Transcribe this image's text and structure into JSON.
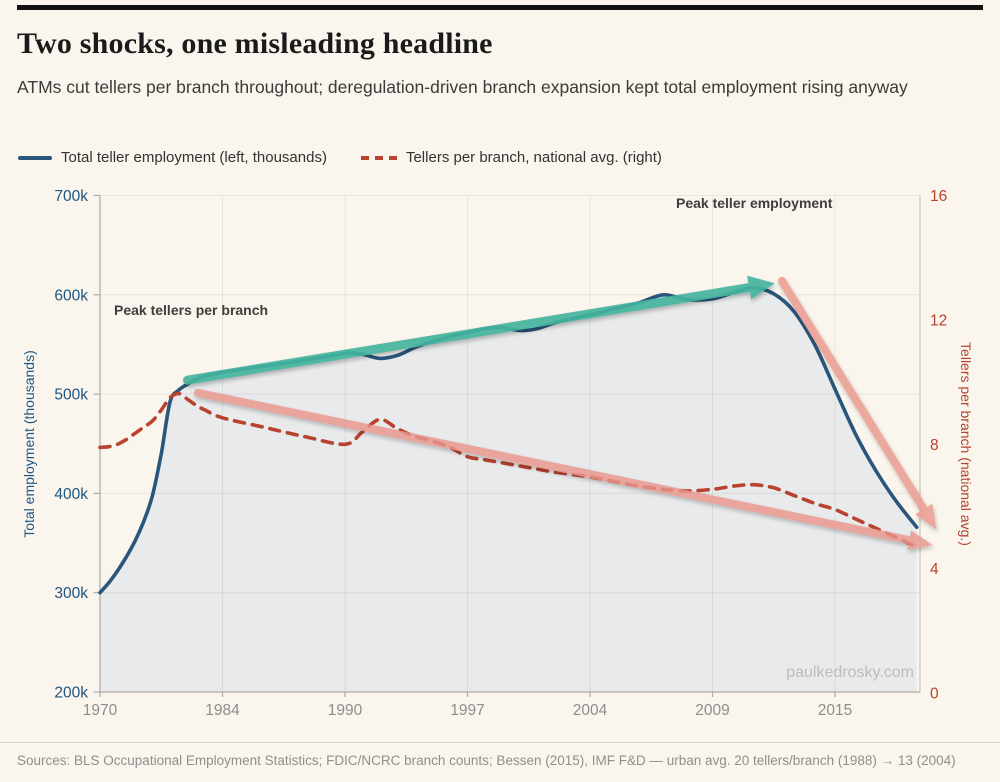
{
  "header": {
    "title": "Two shocks, one misleading headline",
    "subtitle": "ATMs cut tellers per branch throughout; deregulation-driven branch expansion kept total employment rising anyway"
  },
  "footer": {
    "sources": "Sources: BLS Occupational Employment Statistics; FDIC/NCRC branch counts; Bessen (2015), IMF F&D — urban avg. 20 tellers/branch (1988) → 13 (2004)"
  },
  "chart_data": {
    "type": "line",
    "title": "Two shocks, one misleading headline",
    "watermark": "paulkedrosky.com",
    "grid": true,
    "legend": [
      {
        "label": "Total teller employment (left, thousands)",
        "color": "#2a567c",
        "style": "solid"
      },
      {
        "label": "Tellers per branch, national avg. (right)",
        "color": "#b8432f",
        "style": "dashed"
      }
    ],
    "x_axis": {
      "tick_years": [
        1970,
        1984,
        1990,
        1997,
        2004,
        2009,
        2015
      ],
      "tick_labels": [
        "1970",
        "1984",
        "1990",
        "1997",
        "2004",
        "2009",
        "2015"
      ],
      "label_color": "#8d8d8d"
    },
    "y_left": {
      "label": "Total employment (thousands)",
      "tick_values": [
        700,
        600,
        500,
        400,
        300,
        200
      ],
      "tick_labels": [
        "700k",
        "600k",
        "500k",
        "400k",
        "300k",
        "200k"
      ],
      "range": [
        200,
        700
      ],
      "color": "#1f5582"
    },
    "y_right": {
      "label": "Tellers per branch (national avg.)",
      "tick_values": [
        16,
        12,
        8,
        4,
        0
      ],
      "tick_labels": [
        "16",
        "12",
        "8",
        "4",
        "0"
      ],
      "range": [
        0,
        16
      ],
      "color": "#b4432f"
    },
    "series": [
      {
        "name": "Total teller employment",
        "axis": "left",
        "style": "solid",
        "color": "#2a567c",
        "area_fill": "#e9eaeb",
        "points": [
          [
            1970,
            300
          ],
          [
            1971,
            310
          ],
          [
            1972,
            322
          ],
          [
            1973,
            336
          ],
          [
            1974,
            352
          ],
          [
            1975,
            372
          ],
          [
            1976,
            398
          ],
          [
            1977,
            440
          ],
          [
            1978,
            492
          ],
          [
            1979,
            504
          ],
          [
            1980,
            510
          ],
          [
            1981,
            515
          ],
          [
            1982,
            518
          ],
          [
            1984,
            522
          ],
          [
            1986,
            528
          ],
          [
            1988,
            534
          ],
          [
            1990,
            541
          ],
          [
            1991,
            540
          ],
          [
            1992,
            536
          ],
          [
            1993,
            539
          ],
          [
            1994,
            547
          ],
          [
            1995,
            553
          ],
          [
            1996,
            558
          ],
          [
            1997,
            562
          ],
          [
            1998,
            566
          ],
          [
            1999,
            567
          ],
          [
            2000,
            564
          ],
          [
            2001,
            566
          ],
          [
            2002,
            572
          ],
          [
            2003,
            576
          ],
          [
            2004,
            580
          ],
          [
            2005,
            586
          ],
          [
            2006,
            592
          ],
          [
            2007,
            600
          ],
          [
            2008,
            595
          ],
          [
            2009,
            596
          ],
          [
            2010,
            602
          ],
          [
            2011,
            607
          ],
          [
            2012,
            601
          ],
          [
            2013,
            583
          ],
          [
            2014,
            550
          ],
          [
            2015,
            505
          ],
          [
            2016,
            460
          ],
          [
            2017,
            423
          ],
          [
            2018,
            392
          ],
          [
            2019,
            366
          ]
        ]
      },
      {
        "name": "Tellers per branch, national avg.",
        "axis": "right",
        "style": "dashed",
        "color": "#b8432f",
        "points": [
          [
            1970,
            7.9
          ],
          [
            1971,
            7.92
          ],
          [
            1972,
            8.0
          ],
          [
            1973,
            8.15
          ],
          [
            1974,
            8.35
          ],
          [
            1975,
            8.55
          ],
          [
            1976,
            8.75
          ],
          [
            1977,
            9.1
          ],
          [
            1978,
            9.5
          ],
          [
            1979,
            9.63
          ],
          [
            1980,
            9.45
          ],
          [
            1981,
            9.25
          ],
          [
            1982,
            9.1
          ],
          [
            1984,
            8.85
          ],
          [
            1986,
            8.55
          ],
          [
            1988,
            8.25
          ],
          [
            1990,
            8.0
          ],
          [
            1991,
            8.4
          ],
          [
            1992,
            8.8
          ],
          [
            1993,
            8.5
          ],
          [
            1994,
            8.25
          ],
          [
            1995,
            8.1
          ],
          [
            1996,
            7.9
          ],
          [
            1997,
            7.6
          ],
          [
            1998,
            7.5
          ],
          [
            1999,
            7.4
          ],
          [
            2000,
            7.3
          ],
          [
            2001,
            7.2
          ],
          [
            2002,
            7.1
          ],
          [
            2004,
            6.95
          ],
          [
            2005,
            6.8
          ],
          [
            2006,
            6.65
          ],
          [
            2007,
            6.55
          ],
          [
            2008,
            6.5
          ],
          [
            2009,
            6.55
          ],
          [
            2010,
            6.65
          ],
          [
            2011,
            6.7
          ],
          [
            2012,
            6.6
          ],
          [
            2013,
            6.35
          ],
          [
            2014,
            6.1
          ],
          [
            2015,
            5.9
          ],
          [
            2016,
            5.6
          ],
          [
            2017,
            5.3
          ],
          [
            2018,
            5.0
          ],
          [
            2019,
            4.7
          ]
        ]
      }
    ],
    "arrows": [
      {
        "name": "rising-employment-trend",
        "color": "#44b49f",
        "opacity": 0.92,
        "axis": "left",
        "from": [
          1980,
          514
        ],
        "to": [
          2011.3,
          609
        ],
        "width": 9,
        "head": [
          26,
          24
        ]
      },
      {
        "name": "falling-ratio-trend",
        "color": "#e9978c",
        "opacity": 0.82,
        "axis": "right",
        "from": [
          1981.2,
          9.65
        ],
        "to": [
          2019.1,
          4.85
        ],
        "width": 8,
        "head": [
          24,
          20
        ]
      },
      {
        "name": "employment-collapse",
        "color": "#e9978c",
        "opacity": 0.82,
        "axis": "left",
        "from": [
          2012.4,
          614
        ],
        "to": [
          2019.6,
          376
        ],
        "width": 8,
        "head": [
          24,
          20
        ]
      }
    ],
    "markers": [
      {
        "name": "peak-tellers-per-branch-marker",
        "year": 1978.9,
        "axis": "left",
        "from": 570,
        "to": 514
      },
      {
        "name": "peak-teller-employment-marker",
        "year": 2011.6,
        "axis": "left",
        "from": 673,
        "to": 617
      }
    ],
    "annotations": [
      {
        "id": "peak_tellers",
        "text": "Peak tellers per branch"
      },
      {
        "id": "peak_employment",
        "text": "Peak teller employment"
      }
    ]
  }
}
